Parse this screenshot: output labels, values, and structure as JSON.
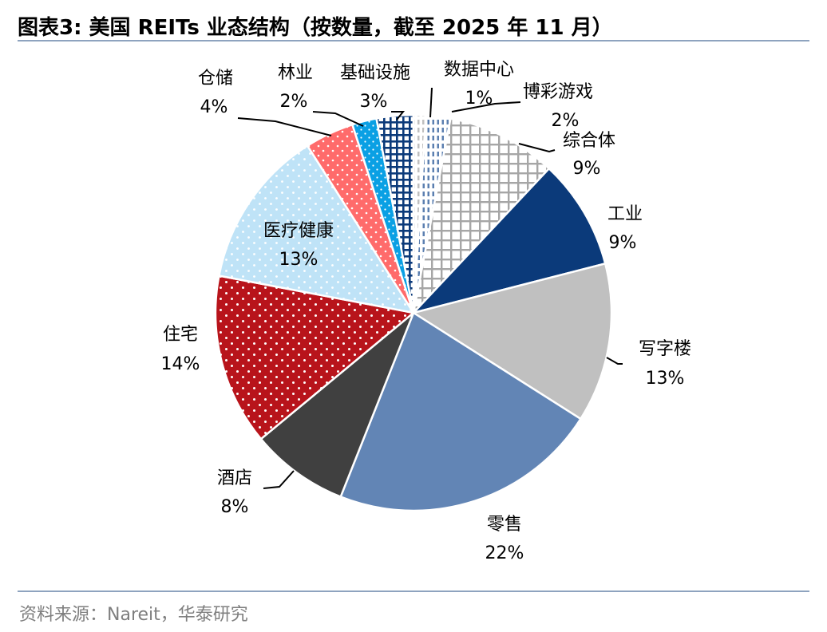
{
  "header": {
    "title": "图表3:  美国 REITs 业态结构（按数量，截至 2025 年 11 月）"
  },
  "footer": {
    "source": "资料来源：Nareit，华泰研究"
  },
  "chart_data": {
    "type": "pie",
    "title": "图表3:  美国 REITs 业态结构（按数量，截至 2025 年 11 月）",
    "unit": "%",
    "slices": [
      {
        "name": "博彩游戏",
        "value": 2,
        "label": "2%",
        "color": "#5b7fb0",
        "pattern": "dash-light"
      },
      {
        "name": "综合体",
        "value": 9,
        "label": "9%",
        "color": "#a6a6a6",
        "pattern": "grid-gray"
      },
      {
        "name": "工业",
        "value": 9,
        "label": "9%",
        "color": "#0b3a7a",
        "pattern": "solid"
      },
      {
        "name": "写字楼",
        "value": 13,
        "label": "13%",
        "color": "#c0c0c0",
        "pattern": "solid"
      },
      {
        "name": "零售",
        "value": 22,
        "label": "22%",
        "color": "#6285b5",
        "pattern": "solid"
      },
      {
        "name": "酒店",
        "value": 8,
        "label": "8%",
        "color": "#404040",
        "pattern": "solid"
      },
      {
        "name": "住宅",
        "value": 14,
        "label": "14%",
        "color": "#b8141b",
        "pattern": "dots-white"
      },
      {
        "name": "医疗健康",
        "value": 13,
        "label": "13%",
        "color": "#bfe3f7",
        "pattern": "dots-white"
      },
      {
        "name": "仓储",
        "value": 4,
        "label": "4%",
        "color": "#ff6b6b",
        "pattern": "dots-white"
      },
      {
        "name": "林业",
        "value": 2,
        "label": "2%",
        "color": "#0aa0e4",
        "pattern": "dots-white"
      },
      {
        "name": "基础设施",
        "value": 3,
        "label": "3%",
        "color": "#0b3a7a",
        "pattern": "grid-dark"
      },
      {
        "name": "数据中心",
        "value": 1,
        "label": "1%",
        "color": "#bfbfbf",
        "pattern": "dash-gray"
      }
    ]
  }
}
